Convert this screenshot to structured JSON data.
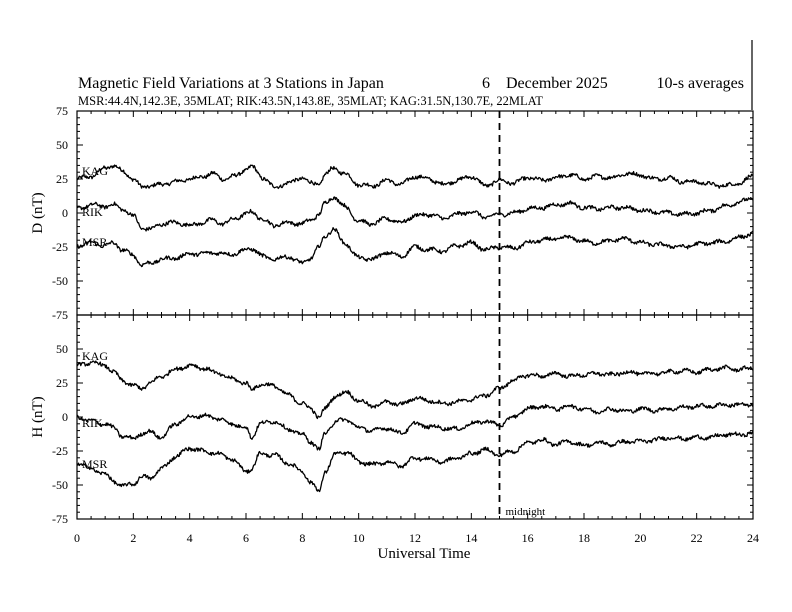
{
  "chart_data": {
    "type": "line",
    "title": "Magnetic Field Variations at 3 Stations in Japan",
    "date_day": "6",
    "date_month_year": "December 2025",
    "averaging": "10-s averages",
    "stations_info": "MSR:44.4N,142.3E, 35MLAT;  RIK:43.5N,143.8E, 35MLAT;  KAG:31.5N,130.7E, 22MLAT",
    "xlabel": "Universal Time",
    "xlim": [
      0,
      24
    ],
    "x_ticks": [
      "0",
      "2",
      "4",
      "6",
      "8",
      "10",
      "12",
      "14",
      "16",
      "18",
      "20",
      "22",
      "24"
    ],
    "midnight_marker": {
      "x": 15,
      "label": "midnight"
    },
    "panels": [
      {
        "id": "D",
        "ylabel": "D (nT)",
        "ylim": [
          -75,
          75
        ],
        "y_ticks": [
          "75",
          "50",
          "25",
          "0",
          "-25",
          "-50",
          "-75"
        ],
        "series": [
          {
            "name": "KAG",
            "label": "KAG",
            "x": [
              0,
              0.5,
              1,
              1.3,
              1.6,
              2,
              2.3,
              2.6,
              3,
              3.5,
              4,
              4.5,
              4.8,
              5.2,
              5.6,
              6,
              6.2,
              6.6,
              7,
              7.5,
              8,
              8.3,
              8.6,
              8.8,
              9.1,
              9.5,
              10,
              10.5,
              11,
              11.5,
              12,
              12.5,
              13,
              13.5,
              14,
              14.5,
              15,
              15.5,
              16,
              16.5,
              17,
              17.5,
              18,
              18.5,
              19,
              19.5,
              20,
              20.5,
              21,
              21.5,
              22,
              22.5,
              23,
              23.5,
              24
            ],
            "values": [
              25,
              27,
              33,
              35,
              31,
              25,
              19,
              20,
              21,
              23,
              25,
              27,
              29,
              25,
              27,
              32,
              34,
              26,
              19,
              22,
              26,
              22,
              21,
              28,
              33,
              29,
              21,
              20,
              24,
              21,
              27,
              25,
              21,
              24,
              27,
              20,
              24,
              22,
              26,
              24,
              26,
              28,
              25,
              27,
              26,
              29,
              28,
              25,
              26,
              23,
              23,
              21,
              20,
              22,
              27
            ]
          },
          {
            "name": "RIK",
            "label": "RIK",
            "x": [
              0,
              0.5,
              1,
              1.3,
              1.6,
              2,
              2.3,
              2.6,
              3,
              3.5,
              4,
              4.5,
              4.8,
              5.2,
              5.6,
              6,
              6.2,
              6.6,
              7,
              7.5,
              8,
              8.3,
              8.6,
              8.8,
              9.1,
              9.5,
              10,
              10.5,
              11,
              11.5,
              12,
              12.5,
              13,
              13.5,
              14,
              14.5,
              15,
              15.5,
              16,
              16.5,
              17,
              17.5,
              18,
              18.5,
              19,
              19.5,
              20,
              20.5,
              21,
              21.5,
              22,
              22.5,
              23,
              23.5,
              24
            ],
            "values": [
              3,
              6,
              5,
              6,
              3,
              -2,
              -11,
              -12,
              -8,
              -7,
              -9,
              -7,
              -5,
              -8,
              -4,
              -1,
              1,
              -5,
              -9,
              -7,
              -8,
              -5,
              -1,
              7,
              12,
              5,
              -6,
              -8,
              -4,
              -7,
              -2,
              -1,
              -4,
              -1,
              1,
              -3,
              -1,
              0,
              3,
              4,
              6,
              7,
              4,
              3,
              4,
              4,
              2,
              1,
              0,
              -1,
              0,
              2,
              5,
              8,
              11
            ]
          },
          {
            "name": "MSR",
            "label": "MSR",
            "x": [
              0,
              0.5,
              1,
              1.3,
              1.6,
              2,
              2.3,
              2.6,
              3,
              3.5,
              4,
              4.5,
              4.8,
              5.2,
              5.6,
              6,
              6.2,
              6.6,
              7,
              7.5,
              8,
              8.3,
              8.6,
              8.8,
              9.1,
              9.5,
              10,
              10.5,
              11,
              11.5,
              12,
              12.5,
              13,
              13.5,
              14,
              14.5,
              15,
              15.5,
              16,
              16.5,
              17,
              17.5,
              18,
              18.5,
              19,
              19.5,
              20,
              20.5,
              21,
              21.5,
              22,
              22.5,
              23,
              23.5,
              24
            ],
            "values": [
              -24,
              -22,
              -24,
              -22,
              -27,
              -31,
              -38,
              -37,
              -34,
              -33,
              -30,
              -30,
              -29,
              -30,
              -30,
              -27,
              -26,
              -32,
              -34,
              -32,
              -37,
              -33,
              -25,
              -17,
              -12,
              -22,
              -33,
              -34,
              -29,
              -32,
              -25,
              -27,
              -28,
              -24,
              -22,
              -27,
              -25,
              -26,
              -22,
              -20,
              -19,
              -18,
              -21,
              -22,
              -20,
              -19,
              -22,
              -23,
              -24,
              -25,
              -23,
              -22,
              -21,
              -18,
              -15
            ]
          }
        ]
      },
      {
        "id": "H",
        "ylabel": "H (nT)",
        "ylim": [
          -75,
          75
        ],
        "y_ticks": [
          "75",
          "50",
          "25",
          "0",
          "-25",
          "-50",
          "-75"
        ],
        "series": [
          {
            "name": "KAG",
            "label": "KAG",
            "x": [
              0,
              0.5,
              1,
              1.3,
              1.6,
              2,
              2.3,
              2.6,
              3,
              3.5,
              4,
              4.5,
              5,
              5.5,
              6,
              6.2,
              6.5,
              7,
              7.5,
              8,
              8.3,
              8.6,
              8.8,
              9.2,
              9.6,
              10,
              10.5,
              11,
              11.5,
              12,
              12.5,
              13,
              13.5,
              14,
              14.5,
              15,
              15.5,
              16,
              16.5,
              17,
              17.5,
              18,
              18.5,
              19,
              19.5,
              20,
              20.5,
              21,
              21.5,
              22,
              22.5,
              23,
              23.5,
              24
            ],
            "values": [
              38,
              40,
              38,
              33,
              27,
              23,
              21,
              25,
              30,
              35,
              38,
              36,
              32,
              28,
              25,
              20,
              24,
              23,
              16,
              10,
              6,
              0,
              6,
              16,
              18,
              12,
              8,
              11,
              9,
              14,
              12,
              10,
              11,
              13,
              16,
              21,
              27,
              31,
              30,
              32,
              30,
              31,
              32,
              31,
              33,
              32,
              32,
              33,
              34,
              33,
              35,
              36,
              35,
              36
            ]
          },
          {
            "name": "RIK",
            "label": "RIK",
            "x": [
              0,
              0.5,
              1,
              1.3,
              1.6,
              2,
              2.3,
              2.6,
              3,
              3.5,
              4,
              4.5,
              5,
              5.5,
              6,
              6.2,
              6.5,
              7,
              7.5,
              8,
              8.3,
              8.6,
              8.8,
              9.2,
              9.6,
              10,
              10.5,
              11,
              11.5,
              12,
              12.5,
              13,
              13.5,
              14,
              14.5,
              15,
              15.5,
              16,
              16.5,
              17,
              17.5,
              18,
              18.5,
              19,
              19.5,
              20,
              20.5,
              21,
              21.5,
              22,
              22.5,
              23,
              23.5,
              24
            ],
            "values": [
              0,
              -3,
              -5,
              -8,
              -14,
              -16,
              -12,
              -11,
              -15,
              -5,
              0,
              1,
              -1,
              -5,
              -8,
              -15,
              -5,
              -3,
              -9,
              -13,
              -18,
              -24,
              -12,
              -3,
              -2,
              -8,
              -10,
              -8,
              -12,
              -5,
              -7,
              -8,
              -9,
              -5,
              -3,
              -6,
              0,
              6,
              8,
              6,
              8,
              6,
              4,
              6,
              4,
              6,
              5,
              6,
              7,
              8,
              8,
              9,
              9,
              9
            ]
          },
          {
            "name": "MSR",
            "label": "MSR",
            "x": [
              0,
              0.5,
              1,
              1.3,
              1.6,
              2,
              2.3,
              2.6,
              3,
              3.5,
              4,
              4.5,
              5,
              5.5,
              6,
              6.2,
              6.5,
              7,
              7.5,
              8,
              8.3,
              8.6,
              8.8,
              9.2,
              9.6,
              10,
              10.5,
              11,
              11.5,
              12,
              12.5,
              13,
              13.5,
              14,
              14.5,
              15,
              15.5,
              16,
              16.5,
              17,
              17.5,
              18,
              18.5,
              19,
              19.5,
              20,
              20.5,
              21,
              21.5,
              22,
              22.5,
              23,
              23.5,
              24
            ],
            "values": [
              -34,
              -38,
              -42,
              -47,
              -51,
              -49,
              -44,
              -45,
              -38,
              -29,
              -23,
              -25,
              -27,
              -31,
              -40,
              -38,
              -27,
              -28,
              -34,
              -40,
              -48,
              -55,
              -40,
              -27,
              -26,
              -33,
              -35,
              -33,
              -36,
              -30,
              -31,
              -33,
              -30,
              -27,
              -24,
              -28,
              -25,
              -19,
              -17,
              -20,
              -18,
              -21,
              -19,
              -20,
              -18,
              -18,
              -17,
              -15,
              -16,
              -15,
              -15,
              -13,
              -13,
              -12
            ]
          }
        ]
      }
    ]
  }
}
